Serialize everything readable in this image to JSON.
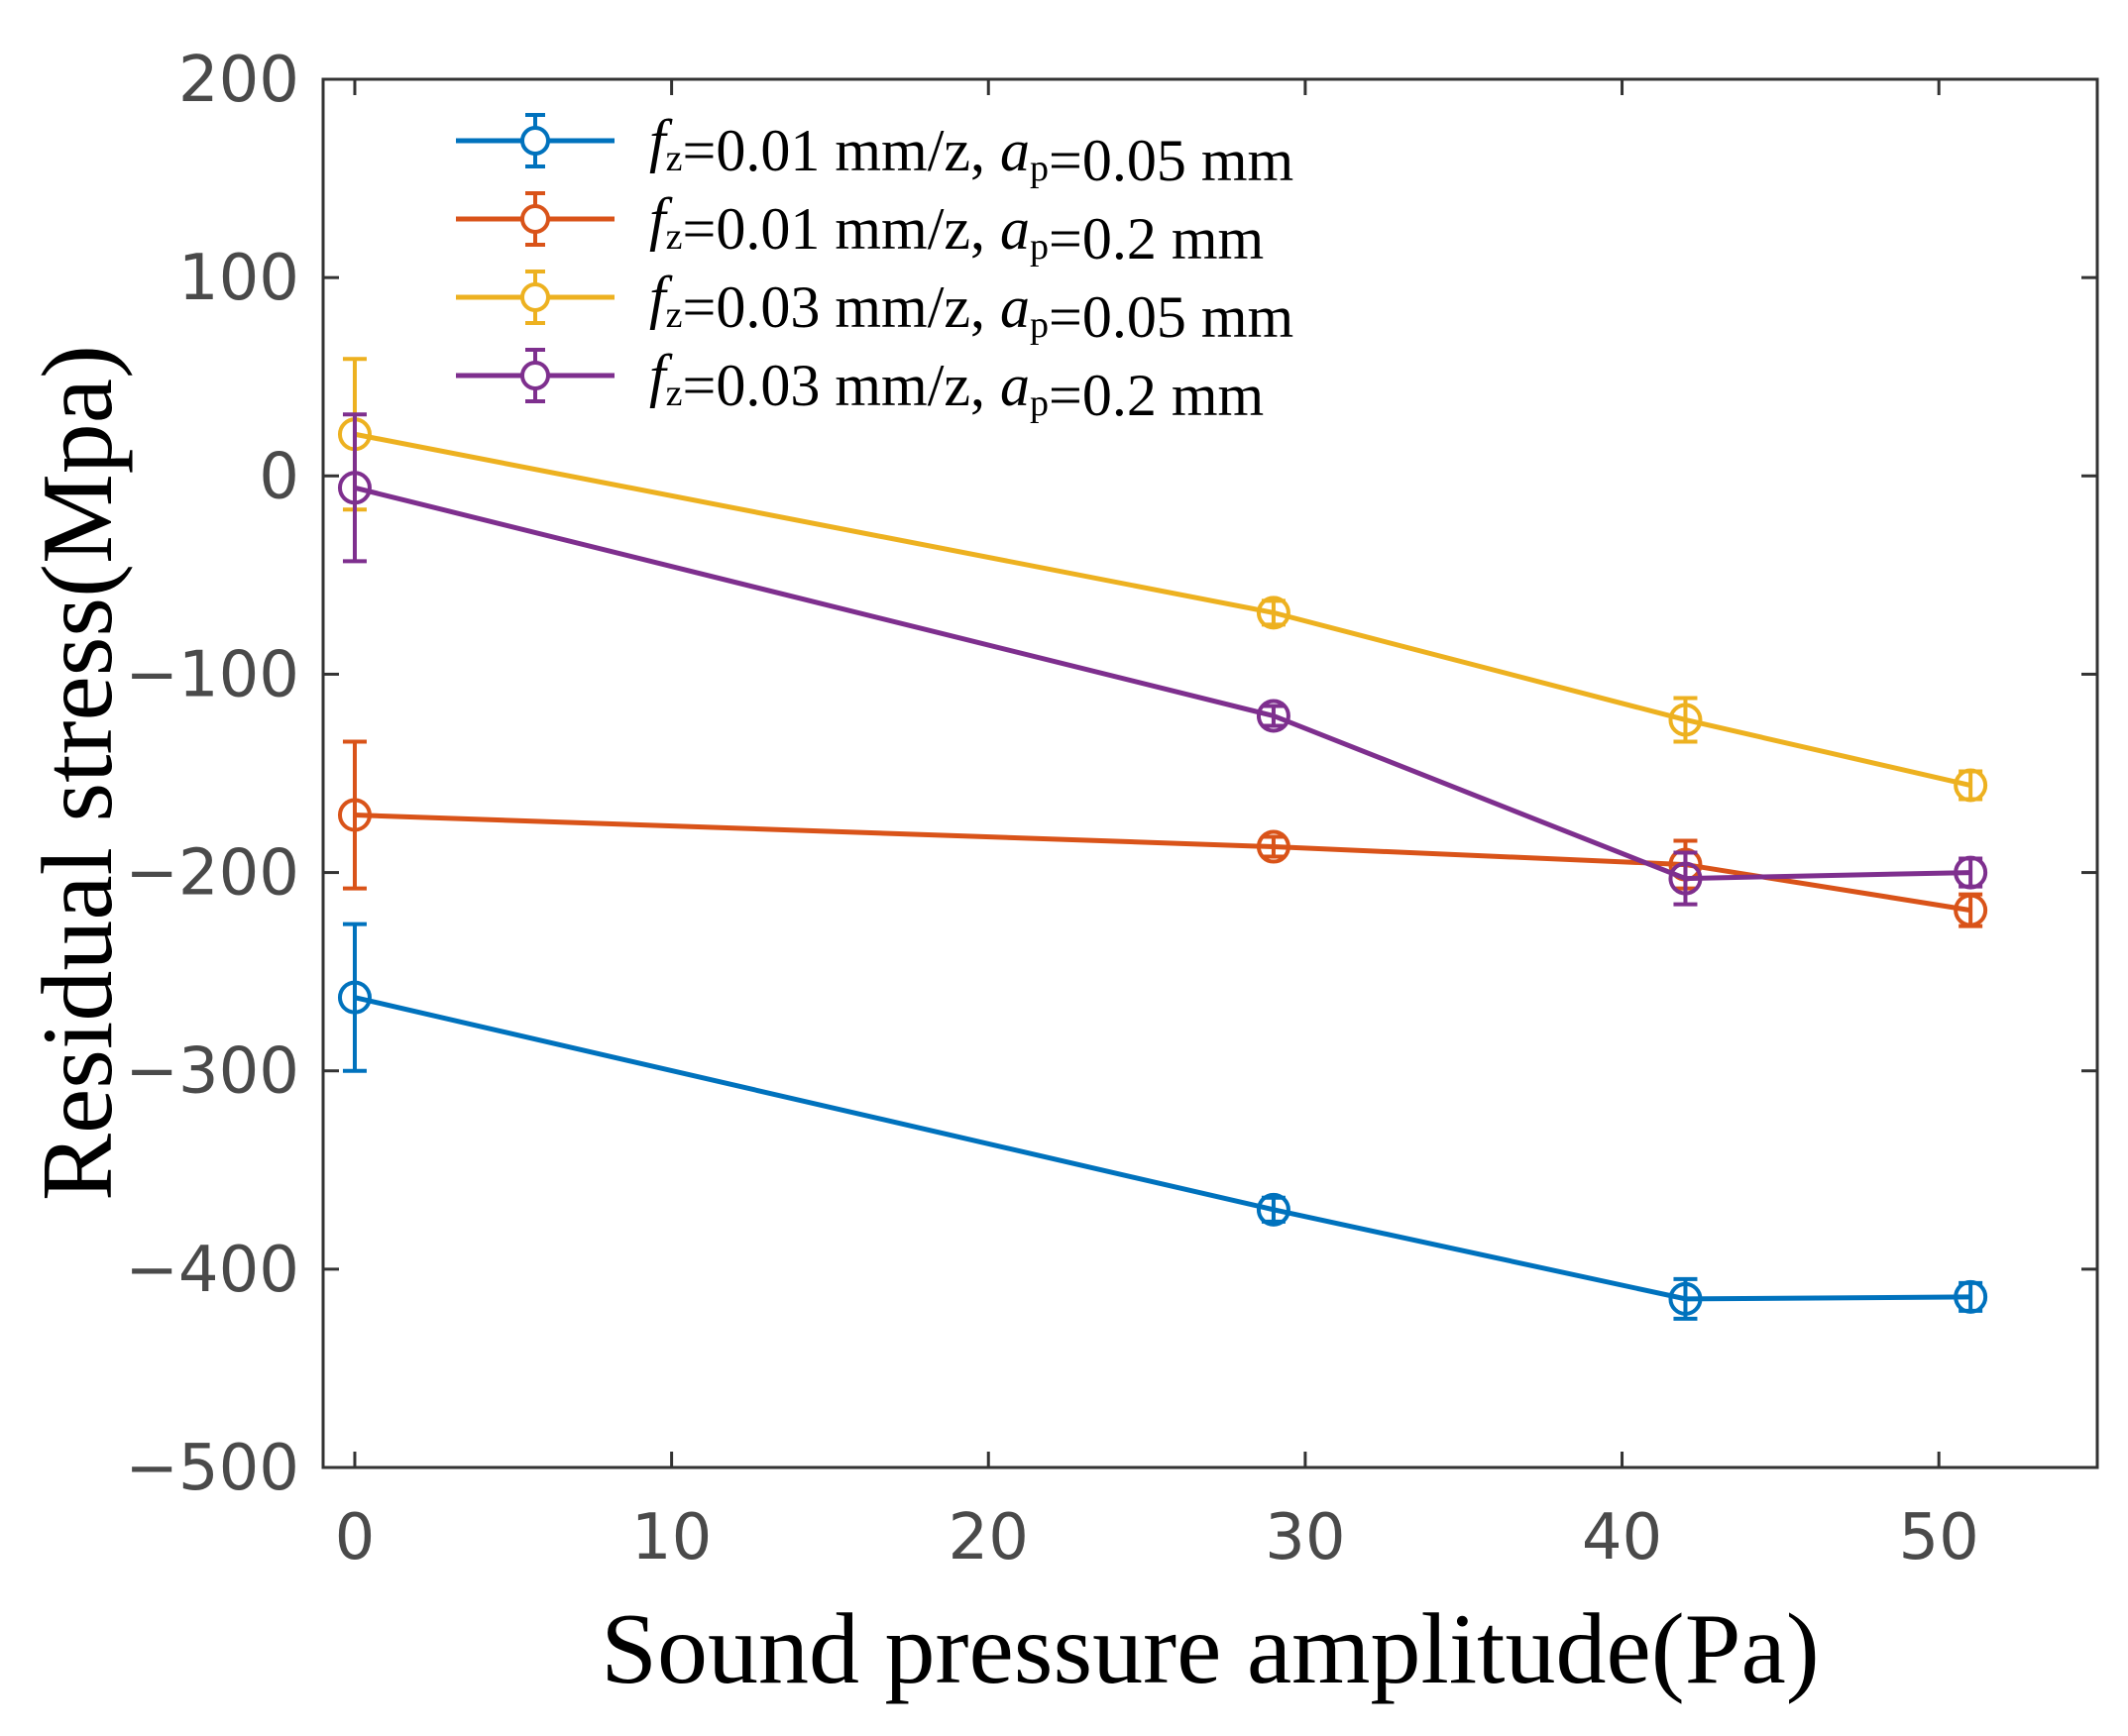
{
  "chart_data": {
    "type": "line",
    "xlabel": "Sound pressure amplitude(Pa)",
    "ylabel": "Residual stress(Mpa)",
    "xlim": [
      -1,
      55
    ],
    "ylim": [
      -500,
      200
    ],
    "xticks": [
      0,
      10,
      20,
      30,
      40,
      50
    ],
    "yticks": [
      200,
      100,
      0,
      -100,
      -200,
      -300,
      -400,
      -500
    ],
    "xtick_labels": [
      "0",
      "10",
      "20",
      "30",
      "40",
      "50"
    ],
    "ytick_labels": [
      "200",
      "100",
      "0",
      "−100",
      "−200",
      "−300",
      "−400",
      "−500"
    ],
    "legend_position": "top-left",
    "x": [
      0,
      29,
      42,
      51
    ],
    "series": [
      {
        "name": "fz=0.01 mm/z, ap=0.05 mm",
        "legend": {
          "f": "f",
          "f_sub": "z",
          "mid": "=0.01 mm/z, ",
          "a": "a",
          "a_sub": "p",
          "end": "=0.05 mm"
        },
        "color": "#0072BD",
        "values": [
          -263,
          -370,
          -415,
          -414
        ],
        "errors": [
          37,
          6,
          10,
          7
        ]
      },
      {
        "name": "fz=0.01 mm/z, ap=0.2 mm",
        "legend": {
          "f": "f",
          "f_sub": "z",
          "mid": "=0.01 mm/z, ",
          "a": "a",
          "a_sub": "p",
          "end": "=0.2 mm"
        },
        "color": "#D95319",
        "values": [
          -171,
          -187,
          -196,
          -219
        ],
        "errors": [
          37,
          5,
          12,
          8
        ]
      },
      {
        "name": "fz=0.03 mm/z, ap=0.05 mm",
        "legend": {
          "f": "f",
          "f_sub": "z",
          "mid": "=0.03 mm/z, ",
          "a": "a",
          "a_sub": "p",
          "end": "=0.05 mm"
        },
        "color": "#EDB120",
        "values": [
          21,
          -69,
          -123,
          -156
        ],
        "errors": [
          38,
          6,
          11,
          7
        ]
      },
      {
        "name": "fz=0.03 mm/z, ap=0.2 mm",
        "legend": {
          "f": "f",
          "f_sub": "z",
          "mid": "=0.03 mm/z, ",
          "a": "a",
          "a_sub": "p",
          "end": "=0.2 mm"
        },
        "color": "#7E2F8E",
        "values": [
          -6,
          -121,
          -203,
          -200
        ],
        "errors": [
          37,
          5,
          13,
          7
        ]
      }
    ]
  }
}
